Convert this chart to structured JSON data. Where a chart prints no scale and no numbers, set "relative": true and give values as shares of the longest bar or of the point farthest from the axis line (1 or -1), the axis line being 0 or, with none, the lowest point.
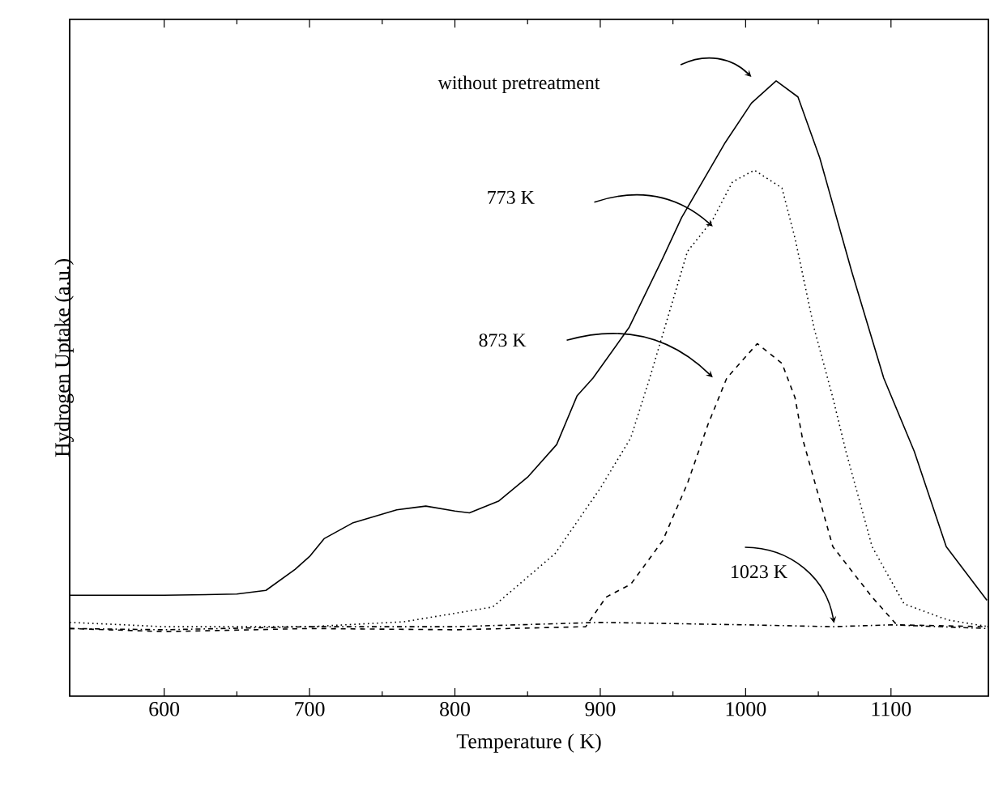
{
  "chart_data": {
    "type": "line",
    "relative": true,
    "xlabel": "Temperature ( K)",
    "ylabel": "Hydrogen Uptake (a.u.)",
    "xlim": [
      535,
      1167
    ],
    "xticks": [
      600,
      700,
      800,
      900,
      1000,
      1100
    ],
    "grid": false,
    "series": [
      {
        "color": "#000000",
        "line_style": "solid",
        "x": [
          535,
          600,
          650,
          670,
          690,
          700,
          710,
          730,
          760,
          780,
          800,
          810,
          830,
          850,
          870,
          884,
          895,
          920,
          943,
          956,
          986,
          1004,
          1021,
          1036,
          1051,
          1073,
          1095,
          1116,
          1138,
          1166
        ],
        "values": [
          0.164,
          0.164,
          0.166,
          0.172,
          0.206,
          0.227,
          0.256,
          0.282,
          0.303,
          0.309,
          0.301,
          0.298,
          0.317,
          0.356,
          0.409,
          0.488,
          0.517,
          0.6,
          0.712,
          0.778,
          0.9,
          0.964,
          1.0,
          0.974,
          0.875,
          0.69,
          0.517,
          0.398,
          0.243,
          0.156
        ]
      },
      {
        "color": "#000000",
        "line_style": "dotted",
        "x": [
          535,
          600,
          700,
          765,
          826,
          869,
          900,
          921,
          934,
          960,
          977,
          991,
          1006,
          1025,
          1034,
          1047,
          1060,
          1069,
          1087,
          1109,
          1139,
          1167
        ],
        "values": [
          0.12,
          0.113,
          0.113,
          0.121,
          0.145,
          0.232,
          0.338,
          0.42,
          0.517,
          0.723,
          0.773,
          0.836,
          0.855,
          0.826,
          0.744,
          0.599,
          0.485,
          0.398,
          0.243,
          0.15,
          0.124,
          0.113
        ]
      },
      {
        "color": "#000000",
        "line_style": "dashed",
        "x": [
          535,
          600,
          700,
          800,
          890,
          904,
          921,
          943,
          960,
          974,
          987,
          1008,
          1025,
          1034,
          1039,
          1060,
          1087,
          1104,
          1167
        ],
        "values": [
          0.11,
          0.105,
          0.11,
          0.108,
          0.113,
          0.161,
          0.182,
          0.253,
          0.346,
          0.441,
          0.517,
          0.573,
          0.541,
          0.485,
          0.42,
          0.243,
          0.161,
          0.116,
          0.113
        ]
      },
      {
        "color": "#000000",
        "line_style": "dashdot",
        "x": [
          535,
          600,
          700,
          800,
          900,
          1000,
          1060,
          1100,
          1167
        ],
        "values": [
          0.11,
          0.108,
          0.113,
          0.113,
          0.12,
          0.116,
          0.113,
          0.116,
          0.11
        ]
      }
    ],
    "annotations": [
      "without pretreatment",
      "773 K",
      "873 K",
      "1023 K"
    ]
  }
}
